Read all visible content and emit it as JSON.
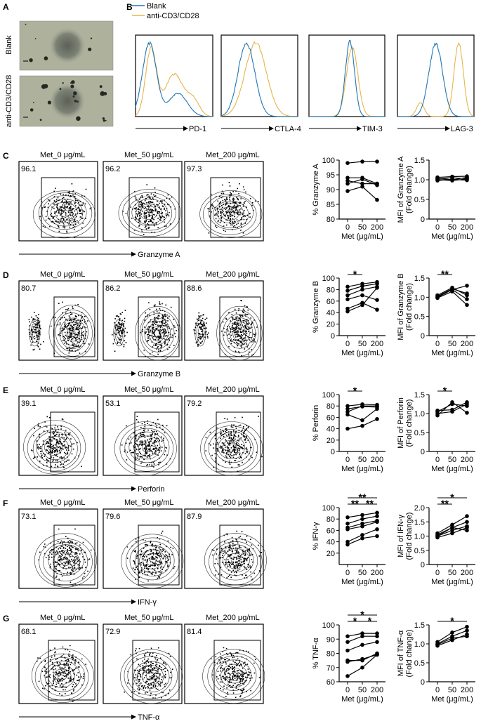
{
  "panel_letters": [
    "A",
    "B",
    "C",
    "D",
    "E",
    "F",
    "G"
  ],
  "panel_a": {
    "labels": [
      "Blank",
      "anti-CD3/CD28"
    ]
  },
  "panel_b": {
    "legend": [
      {
        "name": "Blank",
        "color": "#1f77b4"
      },
      {
        "name": "anti-CD3/CD28",
        "color": "#e5b64a"
      }
    ],
    "markers": [
      "PD-1",
      "CTLA-4",
      "TIM-3",
      "LAG-3"
    ]
  },
  "conditions": [
    "Met_0 μg/mL",
    "Met_50 μg/mL",
    "Met_200 μg/mL"
  ],
  "rows": [
    {
      "letter": "C",
      "marker": "Granzyme A",
      "gates": [
        "96.1",
        "96.2",
        "97.3"
      ]
    },
    {
      "letter": "D",
      "marker": "Granzyme B",
      "gates": [
        "80.7",
        "86.2",
        "88.6"
      ]
    },
    {
      "letter": "E",
      "marker": "Perforin",
      "gates": [
        "39.1",
        "53.1",
        "79.2"
      ]
    },
    {
      "letter": "F",
      "marker": "IFN-γ",
      "gates": [
        "73.1",
        "79.6",
        "87.9"
      ]
    },
    {
      "letter": "G",
      "marker": "TNF-α",
      "gates": [
        "68.1",
        "72.9",
        "81.4"
      ]
    }
  ],
  "chart_data": [
    {
      "type": "line",
      "ylabel": "% Granzyme A",
      "xlabel": "Met (μg/mL)",
      "categories": [
        "0",
        "50",
        "200"
      ],
      "ylim": [
        80,
        100
      ],
      "yticks": [
        "80",
        "85",
        "90",
        "95",
        "100"
      ],
      "series": [
        {
          "values": [
            99,
            99.5,
            99.5
          ]
        },
        {
          "values": [
            94,
            94,
            92
          ]
        },
        {
          "values": [
            93,
            92,
            92
          ]
        },
        {
          "values": [
            92,
            93.5,
            91.5
          ]
        },
        {
          "values": [
            89.5,
            91,
            86.5
          ]
        }
      ],
      "significance": []
    },
    {
      "type": "line",
      "ylabel": "MFI of Granzyme A (Fold change)",
      "xlabel": "Met (μg/mL)",
      "categories": [
        "0",
        "50",
        "200"
      ],
      "ylim": [
        0,
        1.5
      ],
      "yticks": [
        "0",
        "0.5",
        "1.0",
        "1.5"
      ],
      "series": [
        {
          "values": [
            1.06,
            1.08,
            1.09
          ]
        },
        {
          "values": [
            1.02,
            1.05,
            1.03
          ]
        },
        {
          "values": [
            1,
            0.98,
            1.02
          ]
        },
        {
          "values": [
            0.98,
            1.01,
            0.99
          ]
        },
        {
          "values": [
            1.03,
            1,
            1.06
          ]
        }
      ],
      "significance": []
    },
    {
      "type": "line",
      "ylabel": "% Granzyme B",
      "xlabel": "Met (μg/mL)",
      "categories": [
        "0",
        "50",
        "200"
      ],
      "ylim": [
        0,
        100
      ],
      "yticks": [
        "0",
        "20",
        "40",
        "60",
        "80",
        "100"
      ],
      "series": [
        {
          "values": [
            85,
            90,
            93
          ]
        },
        {
          "values": [
            78,
            86,
            90
          ]
        },
        {
          "values": [
            70,
            80,
            85
          ]
        },
        {
          "values": [
            63,
            70,
            62
          ]
        },
        {
          "values": [
            47,
            57,
            45
          ]
        },
        {
          "values": [
            42,
            53,
            83
          ]
        }
      ],
      "significance": [
        {
          "from": 0,
          "to": 1,
          "label": "*",
          "level": 0
        }
      ]
    },
    {
      "type": "line",
      "ylabel": "MFI of Granzyme B (Fold change)",
      "xlabel": "Met (μg/mL)",
      "categories": [
        "0",
        "50",
        "200"
      ],
      "ylim": [
        0,
        1.5
      ],
      "yticks": [
        "0",
        "0.5",
        "1.0",
        "1.5"
      ],
      "series": [
        {
          "values": [
            1,
            1.2,
            1.3
          ]
        },
        {
          "values": [
            1.02,
            1.22,
            1.1
          ]
        },
        {
          "values": [
            1.05,
            1.25,
            1.05
          ]
        },
        {
          "values": [
            0.98,
            1.15,
            0.8
          ]
        },
        {
          "values": [
            1,
            1.2,
            0.95
          ]
        }
      ],
      "significance": [
        {
          "from": 0,
          "to": 1,
          "label": "**",
          "level": 0
        }
      ]
    },
    {
      "type": "line",
      "ylabel": "% Perforin",
      "xlabel": "Met (μg/mL)",
      "categories": [
        "0",
        "50",
        "200"
      ],
      "ylim": [
        0,
        100
      ],
      "yticks": [
        "0",
        "20",
        "40",
        "60",
        "80",
        "100"
      ],
      "series": [
        {
          "values": [
            80,
            83,
            82
          ]
        },
        {
          "values": [
            75,
            79,
            78
          ]
        },
        {
          "values": [
            70,
            80,
            80
          ]
        },
        {
          "values": [
            65,
            55,
            75
          ]
        },
        {
          "values": [
            40,
            45,
            57
          ]
        }
      ],
      "significance": [
        {
          "from": 0,
          "to": 1,
          "label": "*",
          "level": 0
        }
      ]
    },
    {
      "type": "line",
      "ylabel": "MFI of Perforin (Fold change)",
      "xlabel": "Met (μg/mL)",
      "categories": [
        "0",
        "50",
        "200"
      ],
      "ylim": [
        0,
        1.5
      ],
      "yticks": [
        "0",
        "0.5",
        "1.0",
        "1.5"
      ],
      "series": [
        {
          "values": [
            1.05,
            1.25,
            1.2
          ]
        },
        {
          "values": [
            0.95,
            1.3,
            1.02
          ]
        },
        {
          "values": [
            1,
            1.05,
            1.25
          ]
        },
        {
          "values": [
            1.08,
            1.1,
            1.3
          ]
        }
      ],
      "significance": [
        {
          "from": 0,
          "to": 1,
          "label": "*",
          "level": 0
        }
      ]
    },
    {
      "type": "line",
      "ylabel": "% IFN-γ",
      "xlabel": "Met (μg/mL)",
      "categories": [
        "0",
        "50",
        "200"
      ],
      "ylim": [
        0,
        100
      ],
      "yticks": [
        "20",
        "40",
        "60",
        "80",
        "100"
      ],
      "series": [
        {
          "values": [
            83,
            87,
            91
          ]
        },
        {
          "values": [
            72,
            80,
            85
          ]
        },
        {
          "values": [
            65,
            72,
            77
          ]
        },
        {
          "values": [
            62,
            67,
            75
          ]
        },
        {
          "values": [
            40,
            52,
            62
          ]
        },
        {
          "values": [
            35,
            46,
            50
          ]
        }
      ],
      "significance": [
        {
          "from": 0,
          "to": 2,
          "label": "**",
          "level": 1
        },
        {
          "from": 0,
          "to": 1,
          "label": "**",
          "level": 0
        },
        {
          "from": 1,
          "to": 2,
          "label": "**",
          "level": 0
        }
      ]
    },
    {
      "type": "line",
      "ylabel": "MFI of IFN-γ (Fold change)",
      "xlabel": "Met (μg/mL)",
      "categories": [
        "0",
        "50",
        "200"
      ],
      "ylim": [
        0,
        2
      ],
      "yticks": [
        "0",
        "0.5",
        "1.0",
        "1.5",
        "2.0"
      ],
      "series": [
        {
          "values": [
            1.1,
            1.4,
            1.7
          ]
        },
        {
          "values": [
            1.05,
            1.3,
            1.5
          ]
        },
        {
          "values": [
            1,
            1.2,
            1.35
          ]
        },
        {
          "values": [
            0.95,
            1.1,
            1.3
          ]
        },
        {
          "values": [
            1,
            1.3,
            1.2
          ]
        }
      ],
      "significance": [
        {
          "from": 0,
          "to": 2,
          "label": "*",
          "level": 1
        },
        {
          "from": 0,
          "to": 1,
          "label": "**",
          "level": 0
        }
      ]
    },
    {
      "type": "line",
      "ylabel": "% TNF-α",
      "xlabel": "Met (μg/mL)",
      "categories": [
        "0",
        "50",
        "200"
      ],
      "ylim": [
        60,
        100
      ],
      "yticks": [
        "60",
        "70",
        "80",
        "90",
        "100"
      ],
      "series": [
        {
          "values": [
            92,
            94,
            94
          ]
        },
        {
          "values": [
            88,
            92,
            92
          ]
        },
        {
          "values": [
            82,
            86,
            88
          ]
        },
        {
          "values": [
            75,
            75,
            80
          ]
        },
        {
          "values": [
            74,
            76,
            79
          ]
        },
        {
          "values": [
            64,
            70,
            79
          ]
        }
      ],
      "significance": [
        {
          "from": 0,
          "to": 2,
          "label": "*",
          "level": 1
        },
        {
          "from": 0,
          "to": 1,
          "label": "*",
          "level": 0
        },
        {
          "from": 1,
          "to": 2,
          "label": "*",
          "level": 0
        }
      ]
    },
    {
      "type": "line",
      "ylabel": "MFI of TNF-α (Fold change)",
      "xlabel": "Met (μg/mL)",
      "categories": [
        "0",
        "50",
        "200"
      ],
      "ylim": [
        0,
        1.5
      ],
      "yticks": [
        "0",
        "0.5",
        "1.0",
        "1.5"
      ],
      "series": [
        {
          "values": [
            1.05,
            1.3,
            1.45
          ]
        },
        {
          "values": [
            1,
            1.2,
            1.35
          ]
        },
        {
          "values": [
            0.98,
            1.15,
            1.2
          ]
        },
        {
          "values": [
            0.95,
            1.1,
            1.25
          ]
        }
      ],
      "significance": [
        {
          "from": 0,
          "to": 2,
          "label": "*",
          "level": 0
        }
      ]
    }
  ]
}
